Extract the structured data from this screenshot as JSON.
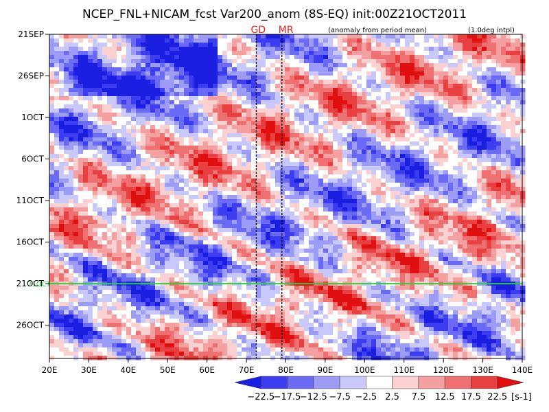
{
  "title": "NCEP_FNL+NICAM_fcst Var200_anom (8S-EQ) init:00Z21OCT2011",
  "subtitle_left": "(anomaly from period mean)",
  "subtitle_right": "(1.0deg intpl)",
  "marker_labels": [
    "GD",
    "MR"
  ],
  "init_line_label": "21OCT",
  "chart_data": {
    "type": "heatmap",
    "title": "NCEP_FNL+NICAM_fcst Var200_anom (8S-EQ) init:00Z21OCT2011",
    "x_ticks": [
      "20E",
      "30E",
      "40E",
      "50E",
      "60E",
      "70E",
      "80E",
      "90E",
      "100E",
      "110E",
      "120E",
      "130E",
      "140E"
    ],
    "x_range": [
      "20E",
      "140E"
    ],
    "y_ticks": [
      "21SEP",
      "26SEP",
      "1OCT",
      "6OCT",
      "11OCT",
      "16OCT",
      "21OCT",
      "26OCT"
    ],
    "y_range": [
      "21SEP",
      "30OCT"
    ],
    "y_direction": "time increases downward",
    "vertical_markers": [
      {
        "label": "GD",
        "lon": "72.5E"
      },
      {
        "label": "MR",
        "lon": "79E"
      }
    ],
    "init_line": {
      "date": "21OCT",
      "color": "#2ecc40"
    },
    "colorbar": {
      "levels": [
        "-22.5",
        "-17.5",
        "-12.5",
        "-7.5",
        "-2.5",
        "2.5",
        "7.5",
        "12.5",
        "17.5",
        "22.5"
      ],
      "unit": "[s-1]",
      "colors": [
        "#1a1ee0",
        "#3c3cf0",
        "#6a6af5",
        "#9c9cf7",
        "#c8c8fa",
        "#ffffff",
        "#fbd0d0",
        "#f5a0a0",
        "#ef7070",
        "#e84040",
        "#e01010"
      ]
    }
  }
}
